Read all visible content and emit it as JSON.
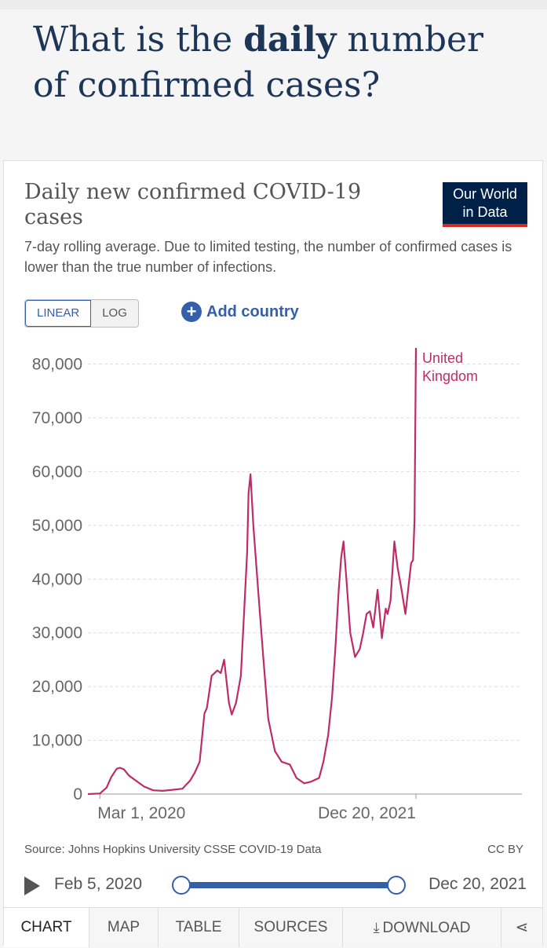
{
  "headline": {
    "prefix": "What is the ",
    "bold": "daily",
    "suffix": " number of confirmed cases?"
  },
  "card": {
    "title": "Daily new confirmed COVID-19 cases",
    "subtitle": "7-day rolling average. Due to limited testing, the number of confirmed cases is lower than the true number of infections.",
    "logo_line1": "Our World",
    "logo_line2": "in Data",
    "logo_colors": {
      "background": "#002147",
      "accent": "#d42b21"
    },
    "scale_options": [
      "LINEAR",
      "LOG"
    ],
    "active_scale": "LINEAR",
    "add_country_label": "Add country",
    "source": "Source: Johns Hopkins University CSSE COVID-19 Data",
    "license": "CC BY",
    "timeline": {
      "start": "Feb 5, 2020",
      "end": "Dec 20, 2021"
    },
    "tabs": [
      "CHART",
      "MAP",
      "TABLE",
      "SOURCES",
      "DOWNLOAD"
    ],
    "active_tab": "CHART"
  },
  "chart_data": {
    "type": "line",
    "title": "Daily new confirmed COVID-19 cases",
    "subtitle": "7-day rolling average. Due to limited testing, the number of confirmed cases is lower than the true number of infections.",
    "xlabel": "",
    "ylabel": "",
    "x_tick_labels": [
      "Mar 1, 2020",
      "Dec 20, 2021"
    ],
    "y_ticks": [
      0,
      10000,
      20000,
      30000,
      40000,
      50000,
      60000,
      70000,
      80000
    ],
    "y_tick_labels": [
      "0",
      "10,000",
      "20,000",
      "30,000",
      "40,000",
      "50,000",
      "60,000",
      "70,000",
      "80,000"
    ],
    "ylim": [
      0,
      83000
    ],
    "xlim": [
      "2020-02-05",
      "2021-12-20"
    ],
    "grid": true,
    "color": "#be2c68",
    "series": [
      {
        "name": "United Kingdom",
        "x": [
          "2020-02-05",
          "2020-03-01",
          "2020-03-15",
          "2020-03-25",
          "2020-04-05",
          "2020-04-12",
          "2020-04-20",
          "2020-05-01",
          "2020-05-15",
          "2020-06-01",
          "2020-06-20",
          "2020-07-10",
          "2020-08-01",
          "2020-08-20",
          "2020-09-05",
          "2020-09-15",
          "2020-09-25",
          "2020-10-05",
          "2020-10-10",
          "2020-10-20",
          "2020-11-01",
          "2020-11-08",
          "2020-11-15",
          "2020-11-25",
          "2020-12-01",
          "2020-12-10",
          "2020-12-20",
          "2020-12-28",
          "2021-01-02",
          "2021-01-05",
          "2021-01-09",
          "2021-01-15",
          "2021-01-25",
          "2021-02-05",
          "2021-02-15",
          "2021-03-01",
          "2021-03-15",
          "2021-04-01",
          "2021-04-15",
          "2021-05-01",
          "2021-05-15",
          "2021-06-01",
          "2021-06-10",
          "2021-06-20",
          "2021-06-28",
          "2021-07-05",
          "2021-07-12",
          "2021-07-17",
          "2021-07-22",
          "2021-07-28",
          "2021-08-05",
          "2021-08-15",
          "2021-08-25",
          "2021-09-01",
          "2021-09-08",
          "2021-09-15",
          "2021-09-22",
          "2021-10-01",
          "2021-10-10",
          "2021-10-18",
          "2021-10-22",
          "2021-10-28",
          "2021-11-05",
          "2021-11-12",
          "2021-11-20",
          "2021-11-28",
          "2021-12-05",
          "2021-12-10",
          "2021-12-14",
          "2021-12-17",
          "2021-12-20"
        ],
        "values": [
          0,
          100,
          1200,
          3200,
          4700,
          4900,
          4600,
          3400,
          2500,
          1400,
          700,
          600,
          800,
          1000,
          2500,
          4000,
          6000,
          15000,
          16000,
          22000,
          23000,
          22500,
          25000,
          17000,
          14800,
          17000,
          22000,
          36000,
          45000,
          56000,
          59500,
          50000,
          38000,
          25000,
          14000,
          8000,
          6000,
          5500,
          3000,
          2000,
          2300,
          3000,
          6000,
          11000,
          18000,
          27000,
          38000,
          44000,
          47000,
          40000,
          30000,
          25500,
          27000,
          30000,
          33500,
          34000,
          31000,
          38000,
          29000,
          34500,
          33500,
          36000,
          47000,
          42000,
          38000,
          33500,
          39000,
          43000,
          43500,
          51000,
          83000
        ]
      }
    ],
    "annotations": [
      "United",
      "Kingdom"
    ]
  }
}
